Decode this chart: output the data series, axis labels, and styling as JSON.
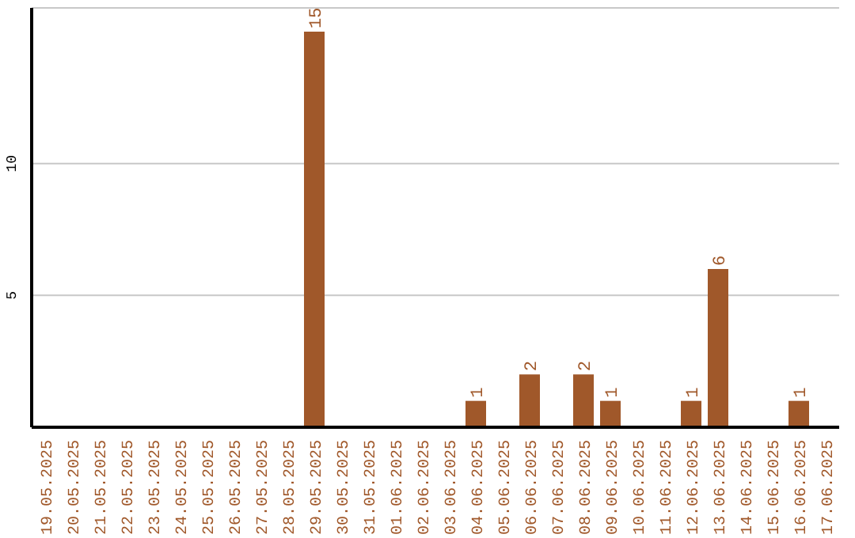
{
  "chart_data": {
    "type": "bar",
    "categories": [
      "19.05.2025",
      "20.05.2025",
      "21.05.2025",
      "22.05.2025",
      "23.05.2025",
      "24.05.2025",
      "25.05.2025",
      "26.05.2025",
      "27.05.2025",
      "28.05.2025",
      "29.05.2025",
      "30.05.2025",
      "31.05.2025",
      "01.06.2025",
      "02.06.2025",
      "03.06.2025",
      "04.06.2025",
      "05.06.2025",
      "06.06.2025",
      "07.06.2025",
      "08.06.2025",
      "09.06.2025",
      "10.06.2025",
      "11.06.2025",
      "12.06.2025",
      "13.06.2025",
      "14.06.2025",
      "15.06.2025",
      "16.06.2025",
      "17.06.2025"
    ],
    "values": [
      0,
      0,
      0,
      0,
      0,
      0,
      0,
      0,
      0,
      0,
      15,
      0,
      0,
      0,
      0,
      0,
      1,
      0,
      2,
      0,
      2,
      1,
      0,
      0,
      1,
      6,
      0,
      0,
      1,
      0
    ],
    "value_labels": [
      null,
      null,
      null,
      null,
      null,
      null,
      null,
      null,
      null,
      null,
      "15",
      null,
      null,
      null,
      null,
      null,
      "1",
      null,
      "2",
      null,
      "2",
      "1",
      null,
      null,
      "1",
      "6",
      null,
      null,
      "1",
      null
    ],
    "color": "#a0582a",
    "ylim": [
      0,
      15.9
    ],
    "yticks": [
      5,
      10
    ],
    "grid": "y"
  }
}
